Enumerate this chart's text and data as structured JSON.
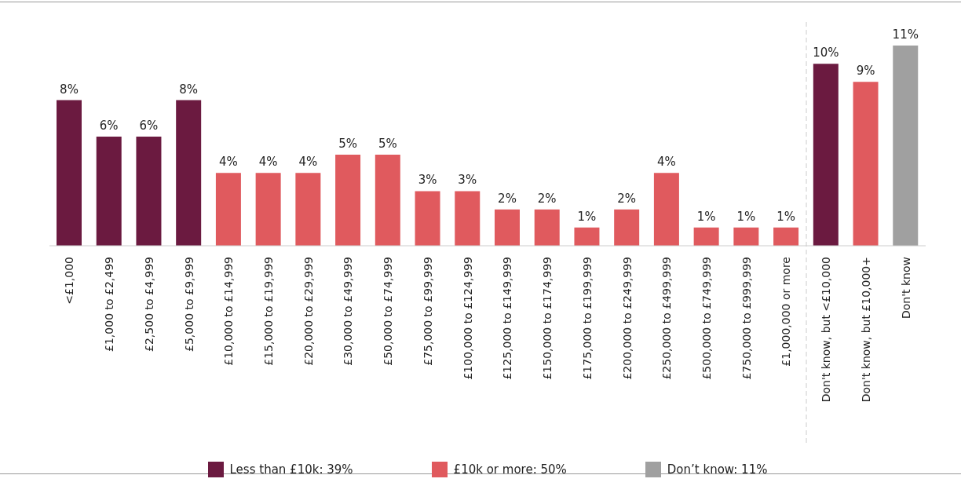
{
  "chart_data": {
    "type": "bar",
    "stacked": true,
    "legend": "bottom",
    "categories": [
      "<£1,000",
      "£1,000 to £2,499",
      "£2,500 to £4,999",
      "£5,000 to £9,999",
      "£10,000 to £14,999",
      "£15,000 to £19,999",
      "£20,000 to £29,999",
      "£30,000 to £49,999",
      "£50,000 to £74,999",
      "£75,000 to £99,999",
      "£100,000 to £124,999",
      "£125,000 to £149,999",
      "£150,000 to £174,999",
      "£175,000 to £199,999",
      "£200,000 to £249,999",
      "£250,000 to £499,999",
      "£500,000 to £749,999",
      "£750,000 to £999,999",
      "£1,000,000 or more",
      "Don't know, but <£10,000",
      "Don't know, but £10,000+",
      "Don't know"
    ],
    "series": [
      {
        "name": "Less than £10k: 39%",
        "color": "#6b1a40",
        "values": [
          8,
          6,
          6,
          8,
          null,
          null,
          null,
          null,
          null,
          null,
          null,
          null,
          null,
          null,
          null,
          null,
          null,
          null,
          null,
          10,
          null,
          null
        ],
        "value_labels": [
          "8%",
          "6%",
          "6%",
          "8%",
          null,
          null,
          null,
          null,
          null,
          null,
          null,
          null,
          null,
          null,
          null,
          null,
          null,
          null,
          null,
          "10%",
          null,
          null
        ]
      },
      {
        "name": "£10k or more: 50%",
        "color": "#e05a5e",
        "values": [
          null,
          null,
          null,
          null,
          4,
          4,
          4,
          5,
          5,
          3,
          3,
          2,
          2,
          1,
          2,
          4,
          1,
          1,
          1,
          null,
          9,
          null
        ],
        "value_labels": [
          null,
          null,
          null,
          null,
          "4%",
          "4%",
          "4%",
          "5%",
          "5%",
          "3%",
          "3%",
          "2%",
          "2%",
          "1%",
          "2%",
          "4%",
          "1%",
          "1%",
          "1%",
          null,
          "9%",
          null
        ]
      },
      {
        "name": "Don’t know: 11%",
        "color": "#a0a0a0",
        "values": [
          null,
          null,
          null,
          null,
          null,
          null,
          null,
          null,
          null,
          null,
          null,
          null,
          null,
          null,
          null,
          null,
          null,
          null,
          null,
          null,
          null,
          11
        ],
        "value_labels": [
          null,
          null,
          null,
          null,
          null,
          null,
          null,
          null,
          null,
          null,
          null,
          null,
          null,
          null,
          null,
          null,
          null,
          null,
          null,
          null,
          null,
          "11%"
        ]
      }
    ]
  }
}
